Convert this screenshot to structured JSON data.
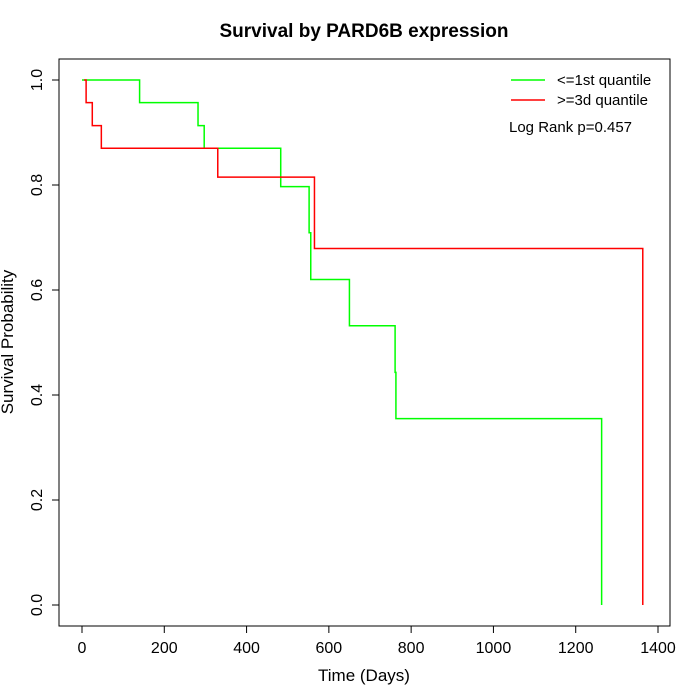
{
  "chart_data": {
    "type": "line",
    "subtype": "step",
    "title": "Survival by PARD6B expression",
    "xlabel": "Time (Days)",
    "ylabel": "Survival Probability",
    "xlim": [
      0,
      1400
    ],
    "ylim": [
      0,
      1
    ],
    "xticks": [
      0,
      200,
      400,
      600,
      800,
      1000,
      1200,
      1400
    ],
    "yticks": [
      0.0,
      0.2,
      0.4,
      0.6,
      0.8,
      1.0
    ],
    "xtick_labels": [
      "0",
      "200",
      "400",
      "600",
      "800",
      "1000",
      "1200",
      "1400"
    ],
    "ytick_labels": [
      "0.0",
      "0.2",
      "0.4",
      "0.6",
      "0.8",
      "1.0"
    ],
    "grid": false,
    "legend_position": "top-right",
    "annotation": "Log Rank p=0.457",
    "series": [
      {
        "name": "<=1st quantile",
        "color": "#00ff00",
        "x": [
          0,
          140,
          282,
          297,
          483,
          552,
          556,
          650,
          761,
          763,
          1263,
          1263
        ],
        "y": [
          1.0,
          0.957,
          0.913,
          0.87,
          0.797,
          0.709,
          0.62,
          0.532,
          0.443,
          0.355,
          0.355,
          0.0
        ]
      },
      {
        "name": ">=3d quantile",
        "color": "#ff0000",
        "x": [
          5,
          10,
          25,
          47,
          330,
          565,
          1363,
          1363
        ],
        "y": [
          1.0,
          0.957,
          0.913,
          0.87,
          0.815,
          0.679,
          0.679,
          0.0
        ]
      }
    ]
  }
}
